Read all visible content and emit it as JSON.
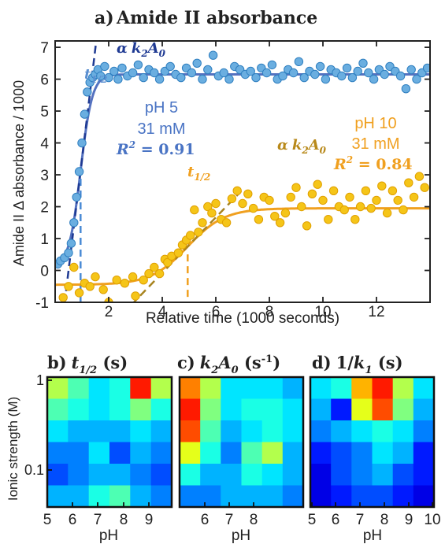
{
  "chart_data": [
    {
      "type": "scatter",
      "panel": "a)",
      "title": "Amide II absorbance",
      "xlabel": "Relative time (1000 seconds)",
      "ylabel": "Amide II Δ absorbance  / 1000",
      "xlim": [
        0,
        14
      ],
      "ylim": [
        -1,
        7.2
      ],
      "xticks": [
        2,
        4,
        6,
        8,
        10,
        12
      ],
      "yticks": [
        -1,
        0,
        1,
        2,
        3,
        4,
        5,
        6,
        7
      ],
      "grid": false,
      "series": [
        {
          "color": "#6aaee0",
          "edge": "#2f7fc0",
          "fit_color": "#5572c0",
          "fit": {
            "kind": "sigmoid",
            "baseline": 0.1,
            "plateau": 6.15,
            "t_half": 0.95,
            "rate": 4.6
          },
          "x": [
            0.1,
            0.2,
            0.35,
            0.5,
            0.6,
            0.7,
            0.8,
            0.9,
            1.0,
            1.1,
            1.2,
            1.3,
            1.4,
            1.5,
            1.6,
            1.7,
            1.85,
            2.0,
            2.2,
            2.35,
            2.5,
            2.7,
            2.9,
            3.1,
            3.3,
            3.5,
            3.7,
            3.9,
            4.1,
            4.3,
            4.5,
            4.7,
            4.9,
            5.1,
            5.3,
            5.5,
            5.7,
            5.9,
            6.1,
            6.3,
            6.5,
            6.7,
            6.9,
            7.1,
            7.3,
            7.5,
            7.7,
            7.9,
            8.1,
            8.3,
            8.5,
            8.7,
            8.9,
            9.1,
            9.3,
            9.5,
            9.7,
            9.9,
            10.1,
            10.3,
            10.5,
            10.7,
            10.9,
            11.1,
            11.3,
            11.5,
            11.7,
            11.9,
            12.1,
            12.3,
            12.5,
            12.7,
            12.9,
            13.1,
            13.3,
            13.5,
            13.7,
            13.9
          ],
          "y": [
            0.2,
            0.3,
            0.4,
            0.55,
            0.85,
            1.5,
            2.3,
            3.1,
            4.0,
            4.9,
            5.6,
            5.9,
            6.05,
            6.15,
            6.3,
            6.1,
            6.4,
            6.05,
            6.25,
            6.0,
            6.35,
            6.1,
            6.2,
            6.45,
            6.05,
            6.3,
            6.2,
            6.0,
            6.25,
            6.4,
            6.15,
            6.05,
            6.35,
            6.2,
            6.5,
            6.0,
            6.3,
            6.75,
            6.1,
            6.2,
            6.0,
            6.4,
            6.3,
            6.15,
            6.25,
            6.05,
            6.35,
            6.2,
            6.45,
            6.0,
            6.1,
            6.3,
            6.2,
            6.55,
            6.05,
            6.25,
            6.15,
            6.4,
            6.0,
            6.3,
            6.2,
            6.1,
            6.35,
            6.05,
            6.25,
            6.5,
            6.2,
            6.0,
            6.3,
            6.15,
            6.4,
            6.25,
            6.1,
            5.7,
            6.3,
            6.0,
            6.2,
            6.35
          ]
        },
        {
          "color": "#f5c518",
          "edge": "#e0a000",
          "fit_color": "#f0a020",
          "fit": {
            "kind": "sigmoid",
            "baseline": -0.45,
            "plateau": 1.95,
            "t_half": 4.95,
            "rate": 1.45
          },
          "x": [
            0.3,
            0.5,
            0.7,
            0.9,
            1.1,
            1.3,
            1.5,
            1.8,
            2.0,
            2.3,
            2.6,
            2.9,
            3.0,
            3.3,
            3.5,
            3.7,
            3.9,
            4.1,
            4.2,
            4.35,
            4.6,
            4.75,
            4.9,
            5.05,
            5.2,
            5.35,
            5.5,
            5.7,
            5.85,
            6.0,
            6.2,
            6.4,
            6.6,
            6.8,
            7.0,
            7.2,
            7.4,
            7.6,
            7.8,
            8.0,
            8.2,
            8.4,
            8.6,
            8.8,
            9.0,
            9.2,
            9.4,
            9.6,
            9.8,
            10.0,
            10.2,
            10.4,
            10.6,
            10.8,
            11.0,
            11.2,
            11.4,
            11.6,
            11.8,
            12.0,
            12.2,
            12.4,
            12.6,
            12.8,
            13.0,
            13.2,
            13.4,
            13.6,
            13.8
          ],
          "y": [
            -0.85,
            -0.5,
            0.1,
            -0.7,
            -0.4,
            -0.5,
            -0.2,
            -0.6,
            -1.0,
            -0.3,
            -0.4,
            -0.2,
            -0.8,
            -0.3,
            -0.1,
            0.1,
            -0.1,
            0.35,
            0.25,
            0.45,
            0.55,
            0.8,
            0.95,
            1.1,
            1.9,
            1.2,
            1.5,
            2.0,
            1.8,
            2.1,
            1.6,
            1.5,
            2.25,
            2.5,
            2.1,
            2.4,
            1.95,
            1.6,
            2.3,
            2.2,
            1.7,
            1.5,
            1.8,
            2.3,
            2.6,
            2.0,
            1.4,
            2.4,
            2.7,
            2.2,
            1.6,
            2.5,
            2.0,
            1.9,
            2.3,
            1.6,
            2.0,
            2.5,
            1.95,
            2.2,
            2.65,
            1.8,
            2.5,
            2.2,
            1.9,
            2.75,
            2.3,
            2.95,
            2.6
          ]
        }
      ],
      "annotations": {
        "blue": {
          "pH": "pH 5",
          "conc": "31 mM",
          "r2_label": "R",
          "r2_sup": "2",
          "r2_value": " = 0.91",
          "t_half_main": "t",
          "t_half_sub": "1/2",
          "slope_alpha": "α",
          "slope_k": "k",
          "slope_k_sub": "2",
          "slope_a": "A",
          "slope_a_sub": "0"
        },
        "orange": {
          "pH": "pH 10",
          "conc": "31 mM",
          "r2_label": "R",
          "r2_sup": "2",
          "r2_value": " = 0.84",
          "t_half_main": "t",
          "t_half_sub": "1/2",
          "slope_alpha": "α",
          "slope_k": "k",
          "slope_k_sub": "2",
          "slope_a": "A",
          "slope_a_sub": "0"
        }
      }
    },
    {
      "type": "heatmap",
      "panel": "b)",
      "title_main": "t",
      "title_sub": "1/2",
      "title_unit": " (s)",
      "xlabel": "pH",
      "ylabel": "Ionic strength (M)",
      "xlim": [
        5,
        10
      ],
      "xticks": [
        5,
        6,
        7,
        8,
        9
      ],
      "yticks": [
        "1",
        "0.1"
      ],
      "z": [
        [
          0.55,
          0.45,
          0.35,
          0.4,
          0.85,
          0.55
        ],
        [
          0.45,
          0.4,
          0.35,
          0.4,
          0.5,
          0.4
        ],
        [
          0.35,
          0.3,
          0.3,
          0.3,
          0.35,
          0.3
        ],
        [
          0.25,
          0.25,
          0.35,
          0.2,
          0.3,
          0.25
        ],
        [
          0.2,
          0.25,
          0.3,
          0.3,
          0.25,
          0.2
        ],
        [
          0.3,
          0.3,
          0.4,
          0.45,
          0.3,
          0.25
        ]
      ]
    },
    {
      "type": "heatmap",
      "panel": "c)",
      "title_main": "k",
      "title_sub": "2",
      "title_a": "A",
      "title_a_sub": "0",
      "title_unit": " (s",
      "title_unit_sup": "-1",
      "title_close": ")",
      "xlabel": "pH",
      "xticks": [
        "6",
        "7",
        "8"
      ],
      "z": [
        [
          0.75,
          0.55,
          0.35,
          0.35,
          0.35,
          0.3
        ],
        [
          0.85,
          0.5,
          0.35,
          0.4,
          0.4,
          0.35
        ],
        [
          0.8,
          0.45,
          0.3,
          0.35,
          0.4,
          0.35
        ],
        [
          0.6,
          0.4,
          0.25,
          0.45,
          0.55,
          0.3
        ],
        [
          0.4,
          0.3,
          0.3,
          0.4,
          0.35,
          0.3
        ],
        [
          0.25,
          0.25,
          0.3,
          0.3,
          0.3,
          0.25
        ]
      ]
    },
    {
      "type": "heatmap",
      "panel": "d)",
      "title_main": "1/",
      "title_k": "k",
      "title_k_sub": "1",
      "title_unit": " (s)",
      "xlabel": "pH",
      "xticks": [
        "5",
        "6",
        "7",
        "8",
        "9",
        "10"
      ],
      "z": [
        [
          0.35,
          0.4,
          0.7,
          0.85,
          0.55,
          0.35
        ],
        [
          0.3,
          0.15,
          0.6,
          0.8,
          0.5,
          0.3
        ],
        [
          0.25,
          0.3,
          0.35,
          0.4,
          0.35,
          0.25
        ],
        [
          0.15,
          0.2,
          0.25,
          0.35,
          0.3,
          0.15
        ],
        [
          0.1,
          0.2,
          0.25,
          0.3,
          0.2,
          0.15
        ],
        [
          0.1,
          0.15,
          0.2,
          0.2,
          0.15,
          0.1
        ]
      ]
    }
  ]
}
